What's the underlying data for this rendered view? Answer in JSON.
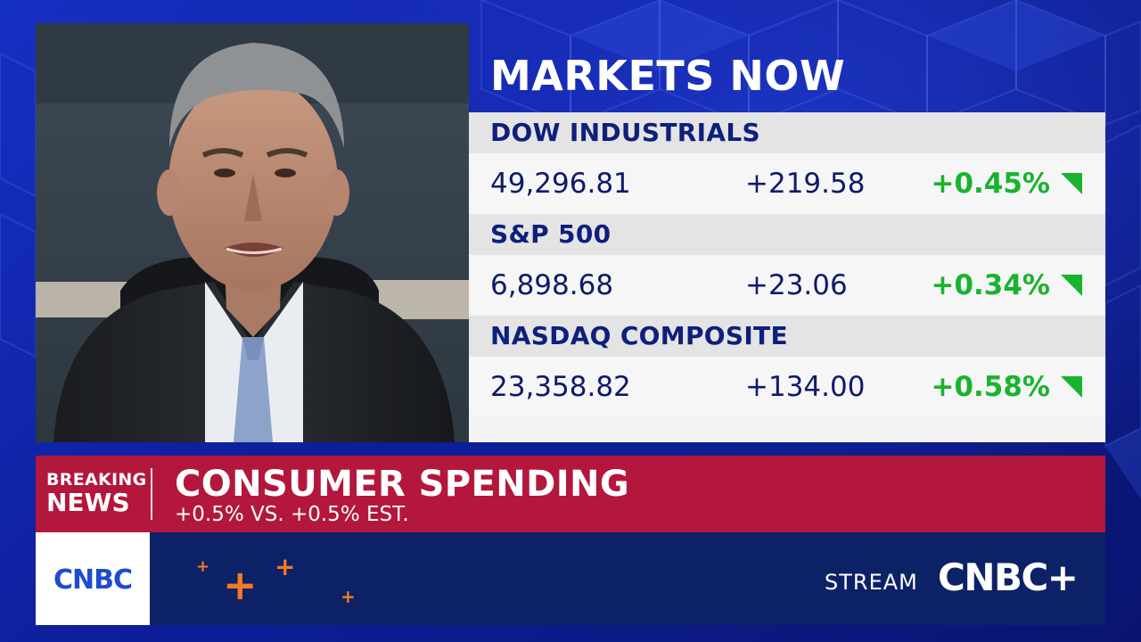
{
  "markets": {
    "title": "MARKETS NOW",
    "indices": [
      {
        "name": "DOW INDUSTRIALS",
        "value": "49,296.81",
        "change": "+219.58",
        "percent": "+0.45%",
        "direction": "up-arrow-icon"
      },
      {
        "name": "S&P 500",
        "value": "6,898.68",
        "change": "+23.06",
        "percent": "+0.34%",
        "direction": "up-arrow-icon"
      },
      {
        "name": "NASDAQ COMPOSITE",
        "value": "23,358.82",
        "change": "+134.00",
        "percent": "+0.58%",
        "direction": "up-arrow-icon"
      }
    ],
    "up_color": "#19b32e"
  },
  "banner": {
    "badge_line1": "BREAKING",
    "badge_line2": "NEWS",
    "headline": "CONSUMER SPENDING",
    "subtext": "+0.5% VS. +0.5% EST.",
    "color": "#b3173c"
  },
  "bottom_bar": {
    "network_logo": "CNBC",
    "stream_label": "STREAM",
    "stream_brand": "CNBC+",
    "plus_glyph": "+",
    "accent_color": "#f47a20"
  }
}
